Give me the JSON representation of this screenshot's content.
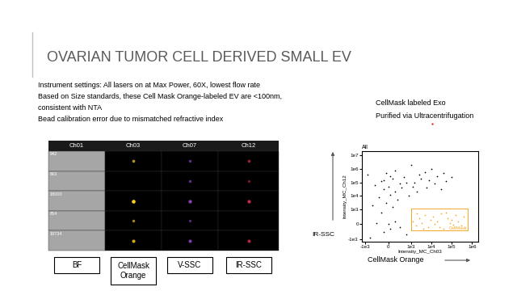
{
  "header": {
    "title": "OVARIAN TUMOR CELL DERIVED SMALL EV"
  },
  "bullets": [
    "Instrument settings: All lasers on at Max Power, 60X, lowest flow rate",
    "Based on Size standards, these Cell Mask Orange-labeled EV are <100nm,",
    "consistent with NTA",
    "Bead calibration error due to mismatched refractive index"
  ],
  "gallery": {
    "channels": [
      "Ch01",
      "Ch03",
      "Ch07",
      "Ch12"
    ],
    "object_ids": [
      "942",
      "863",
      "18000",
      "854",
      "19734"
    ],
    "channel_labels": [
      "BF",
      "CellMask\nOrange",
      "V-SSC",
      "IR-SSC"
    ]
  },
  "side_note": [
    "CellMask labeled Exo",
    "Purified via Ultracentrifugation"
  ],
  "axis_captions": {
    "y": "IR-SSC",
    "x": "CellMask Orange"
  },
  "chart_data": {
    "type": "scatter",
    "title": "All",
    "x_label": "Intensity_MC_Ch03",
    "y_label": "Intensity_MC_Ch12",
    "log": true,
    "xlim": [
      -1500,
      2000000
    ],
    "ylim": [
      -1500,
      20000000
    ],
    "xticks": [
      {
        "value": -1000,
        "label": "-1e3"
      },
      0,
      {
        "value": 1000,
        "label": "1e3"
      },
      {
        "value": 10000,
        "label": "1e4"
      },
      {
        "value": 100000,
        "label": "1e5"
      },
      {
        "value": 1000000,
        "label": "1e6"
      }
    ],
    "yticks": [
      {
        "value": -1000,
        "label": "-1e3"
      },
      0,
      {
        "value": 1000,
        "label": "1e3"
      },
      {
        "value": 10000,
        "label": "1e4"
      },
      {
        "value": 100000,
        "label": "1e5"
      },
      {
        "value": 1000000,
        "label": "1e6"
      },
      {
        "value": 10000000,
        "label": "1e7"
      }
    ],
    "series": [
      {
        "color": "#000000",
        "x": [
          -200,
          100,
          300,
          -500,
          0,
          500,
          -300,
          200,
          -100,
          400,
          -400,
          100,
          300,
          -200,
          0,
          500,
          -300,
          200,
          100,
          -100,
          300,
          -200,
          600,
          -600,
          800,
          700,
          -700,
          900,
          1500,
          3000,
          8000,
          20000,
          50000,
          1200,
          2500,
          5000,
          15000,
          40000,
          100000,
          2000,
          6000,
          30000,
          10000,
          -800,
          800,
          -900,
          1000
        ],
        "y": [
          -500,
          -300,
          200,
          100,
          0,
          -200,
          800,
          1500,
          3000,
          5000,
          8000,
          12000,
          20000,
          30000,
          50000,
          80000,
          120000,
          200000,
          300000,
          500000,
          700000,
          150000,
          40000,
          60000,
          90000,
          250000,
          2000,
          10000,
          100000,
          200000,
          150000,
          300000,
          120000,
          50000,
          400000,
          600000,
          80000,
          500000,
          250000,
          20000,
          40000,
          30000,
          1000000,
          -900,
          -700,
          400000,
          2000000
        ]
      },
      {
        "color": "#f5a623",
        "x": [
          1200,
          1800,
          2500,
          3500,
          5000,
          7000,
          9000,
          12000,
          15000,
          20000,
          30000,
          40000,
          60000,
          80000,
          100000,
          150000,
          200000,
          300000,
          400000,
          2000,
          4000,
          25000,
          50000,
          120000
        ],
        "y": [
          200,
          -100,
          400,
          100,
          600,
          -200,
          300,
          500,
          0,
          200,
          700,
          -300,
          400,
          100,
          300,
          600,
          200,
          -100,
          500,
          700,
          -300,
          -200,
          800,
          -50
        ]
      }
    ],
    "gate": {
      "label": "CellMask",
      "color": "#f5a623",
      "x": [
        1000,
        600000
      ],
      "y": [
        -400,
        1100
      ]
    }
  }
}
